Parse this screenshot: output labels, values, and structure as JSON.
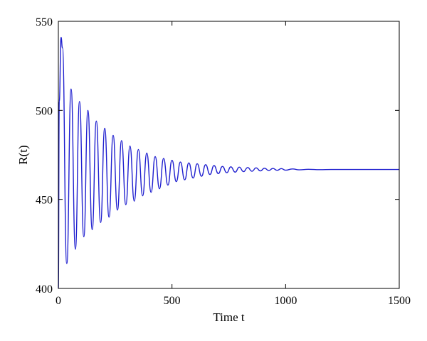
{
  "chart_data": {
    "type": "line",
    "title": "",
    "xlabel": "Time t",
    "ylabel": "R(t)",
    "xlim": [
      0,
      1500
    ],
    "ylim": [
      400,
      550
    ],
    "xticks": [
      0,
      500,
      1000,
      1500
    ],
    "yticks": [
      400,
      450,
      500,
      550
    ],
    "grid": false,
    "legend": "none",
    "series": [
      {
        "color": "#1f1fcf",
        "equilibrium": 466.8,
        "x": [
          0,
          4,
          12,
          18,
          37,
          56,
          75,
          93,
          112,
          130,
          149,
          167,
          186,
          204,
          223,
          241,
          260,
          278,
          297,
          315,
          334,
          352,
          371,
          389,
          408,
          426,
          445,
          463,
          482,
          500,
          519,
          537,
          556,
          574,
          593,
          611,
          630,
          648,
          667,
          685,
          704,
          722,
          741,
          759,
          778,
          796,
          815,
          833,
          852,
          870,
          889,
          907,
          926,
          944,
          963,
          981,
          1000,
          1030,
          1060,
          1100,
          1150,
          1200,
          1300,
          1400,
          1500
        ],
        "y": [
          400,
          505,
          541,
          535,
          414,
          512,
          422,
          505,
          429,
          500,
          433,
          494,
          437,
          490,
          440,
          486,
          444,
          483,
          447,
          480,
          449,
          478,
          452,
          476,
          454,
          474,
          456,
          473,
          458,
          472,
          460,
          471,
          461,
          470.5,
          462,
          470,
          463,
          469.5,
          464,
          469,
          464.5,
          468.5,
          465,
          468.3,
          465.3,
          468.1,
          465.6,
          467.9,
          465.8,
          467.7,
          466,
          467.5,
          466.2,
          467.4,
          466.3,
          467.3,
          466.4,
          467.1,
          466.6,
          466.9,
          466.7,
          466.8,
          466.8,
          466.8,
          466.8
        ]
      }
    ]
  }
}
